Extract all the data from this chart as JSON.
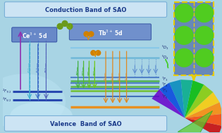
{
  "bg_color": "#a8d4e4",
  "title_top": "Conduction Band of SAO",
  "title_bottom": "Valence  Band of SAO",
  "title_color": "#1a3a8a",
  "ce_label": "Ce$^{3+}$ 5d",
  "tb_label": "Tb$^{3+}$ 5d",
  "fig_w": 3.15,
  "fig_h": 1.89,
  "dpi": 100
}
